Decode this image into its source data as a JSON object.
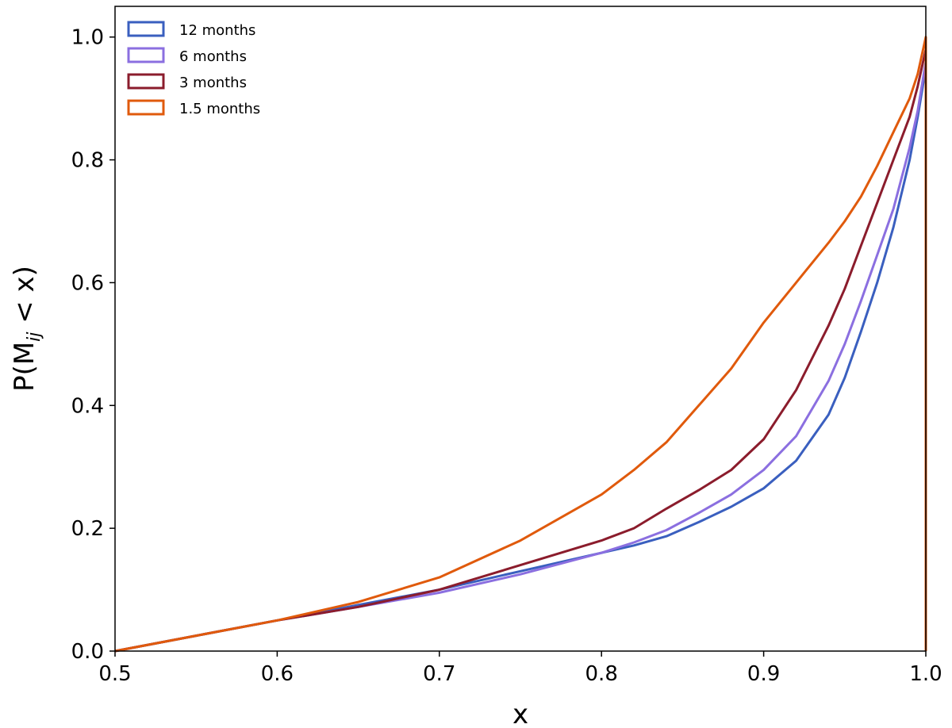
{
  "chart_data": {
    "type": "line",
    "title": "",
    "xlabel": "x",
    "ylabel": "P(M",
    "ylabel_subscript": "ij",
    "ylabel_suffix": " < x)",
    "xlim": [
      0.5,
      1.0
    ],
    "ylim": [
      0.0,
      1.05
    ],
    "xticks": [
      "0.5",
      "0.6",
      "0.7",
      "0.8",
      "0.9",
      "1.0"
    ],
    "yticks": [
      "0.0",
      "0.2",
      "0.4",
      "0.6",
      "0.8",
      "1.0"
    ],
    "grid": false,
    "legend_position": "top-left",
    "series": [
      {
        "name": "12 months",
        "color": "#3a5fbf",
        "x": [
          0.5,
          0.55,
          0.6,
          0.65,
          0.7,
          0.75,
          0.8,
          0.82,
          0.84,
          0.86,
          0.88,
          0.9,
          0.92,
          0.94,
          0.95,
          0.96,
          0.97,
          0.98,
          0.99,
          0.995,
          1.0
        ],
        "y": [
          0.0,
          0.025,
          0.05,
          0.075,
          0.1,
          0.13,
          0.16,
          0.172,
          0.187,
          0.21,
          0.235,
          0.265,
          0.31,
          0.385,
          0.445,
          0.52,
          0.6,
          0.69,
          0.8,
          0.87,
          0.95
        ]
      },
      {
        "name": "6 months",
        "color": "#8b6fe0",
        "x": [
          0.5,
          0.55,
          0.6,
          0.65,
          0.7,
          0.75,
          0.8,
          0.82,
          0.84,
          0.86,
          0.88,
          0.9,
          0.92,
          0.94,
          0.95,
          0.96,
          0.97,
          0.98,
          0.99,
          0.995,
          1.0
        ],
        "y": [
          0.0,
          0.025,
          0.05,
          0.072,
          0.095,
          0.125,
          0.16,
          0.177,
          0.197,
          0.225,
          0.255,
          0.295,
          0.35,
          0.44,
          0.5,
          0.57,
          0.645,
          0.72,
          0.82,
          0.88,
          0.96
        ]
      },
      {
        "name": "3 months",
        "color": "#8b1c2c",
        "x": [
          0.5,
          0.55,
          0.6,
          0.65,
          0.7,
          0.75,
          0.8,
          0.82,
          0.84,
          0.86,
          0.88,
          0.9,
          0.92,
          0.94,
          0.95,
          0.96,
          0.97,
          0.98,
          0.99,
          0.995,
          1.0
        ],
        "y": [
          0.0,
          0.025,
          0.05,
          0.072,
          0.1,
          0.14,
          0.18,
          0.2,
          0.232,
          0.262,
          0.295,
          0.345,
          0.425,
          0.53,
          0.59,
          0.66,
          0.73,
          0.8,
          0.87,
          0.92,
          0.98
        ]
      },
      {
        "name": "1.5 months",
        "color": "#e05a0c",
        "x": [
          0.5,
          0.55,
          0.6,
          0.65,
          0.7,
          0.75,
          0.8,
          0.82,
          0.84,
          0.86,
          0.88,
          0.9,
          0.92,
          0.94,
          0.95,
          0.96,
          0.97,
          0.98,
          0.99,
          0.995,
          1.0
        ],
        "y": [
          0.0,
          0.025,
          0.05,
          0.08,
          0.12,
          0.18,
          0.255,
          0.295,
          0.34,
          0.4,
          0.46,
          0.535,
          0.6,
          0.665,
          0.7,
          0.74,
          0.79,
          0.845,
          0.9,
          0.94,
          1.0
        ]
      }
    ]
  }
}
